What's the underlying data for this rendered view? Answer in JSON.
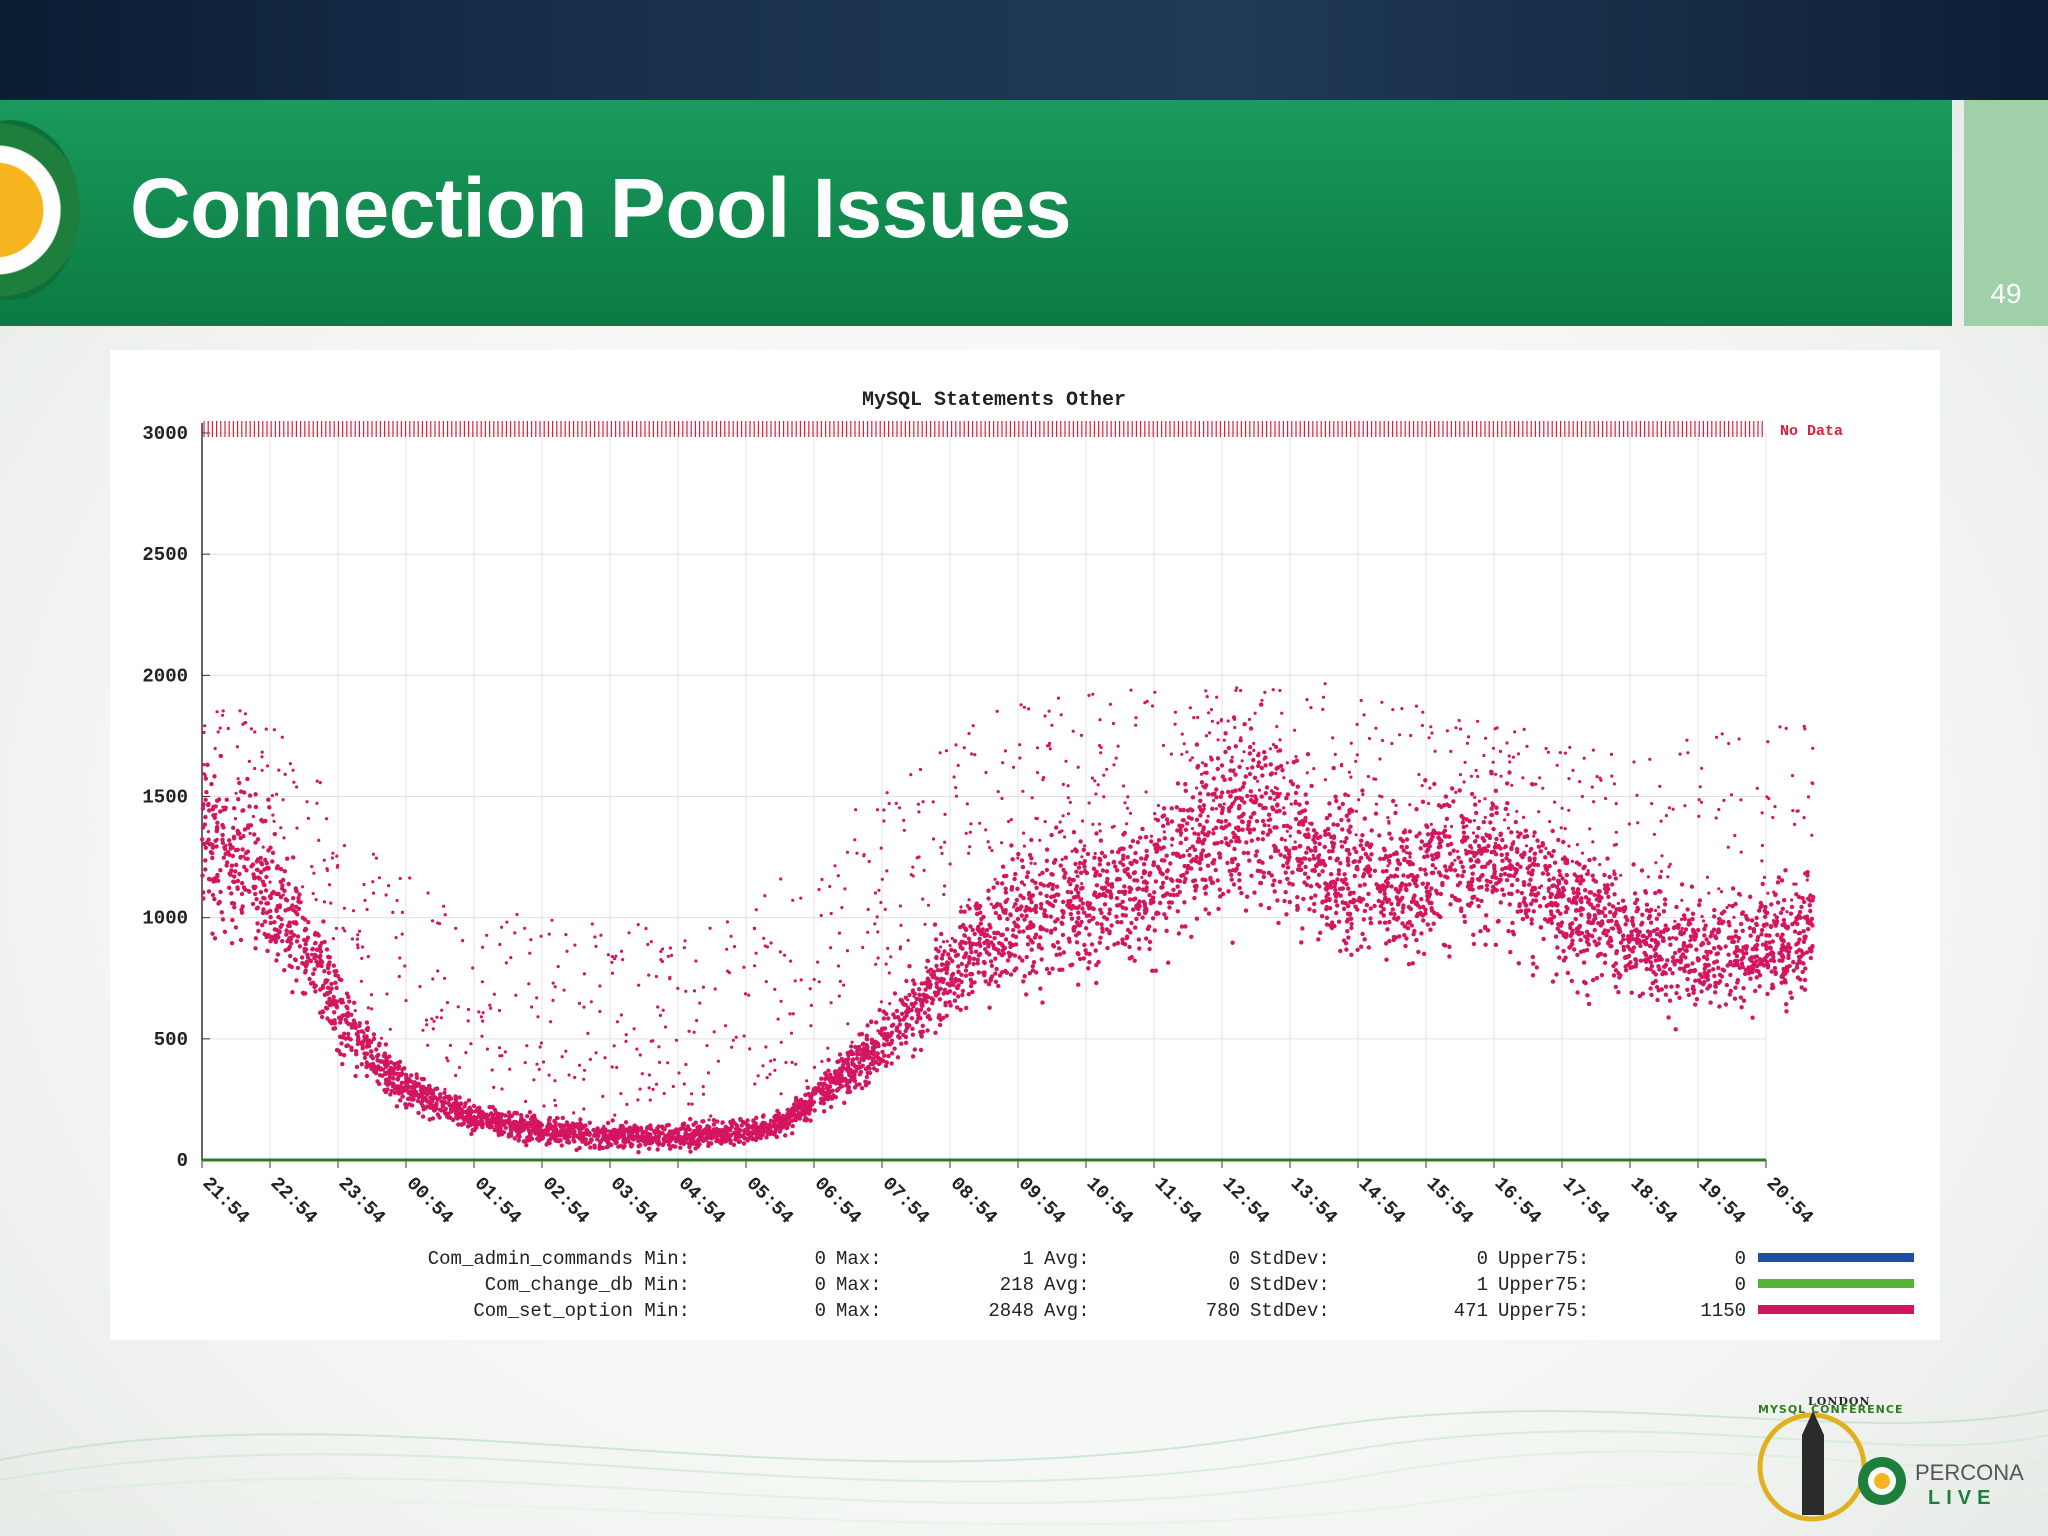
{
  "slide": {
    "title": "Connection Pool Issues",
    "page_number": "49",
    "footer_logo": {
      "conference_text": "MYSQL CONFERENCE",
      "city_text": "LONDON",
      "brand_line1": "PERCONA",
      "brand_line2": "LIVE"
    }
  },
  "colors": {
    "title_green": "#0f8449",
    "series_admin": "#1f4fa3",
    "series_change_db": "#55b33a",
    "series_set_option": "#d4155f",
    "no_data": "#e0203a",
    "axis_green": "#2e7d1c"
  },
  "chart_data": {
    "type": "scatter",
    "title": "MySQL Statements Other",
    "ylim": [
      0,
      3000
    ],
    "yticks": [
      "0",
      "500",
      "1000",
      "1500",
      "2000",
      "2500",
      "3000"
    ],
    "xticks": [
      "21:54",
      "22:54",
      "23:54",
      "00:54",
      "01:54",
      "02:54",
      "03:54",
      "04:54",
      "05:54",
      "06:54",
      "07:54",
      "08:54",
      "09:54",
      "10:54",
      "11:54",
      "12:54",
      "13:54",
      "14:54",
      "15:54",
      "16:54",
      "17:54",
      "18:54",
      "19:54",
      "20:54"
    ],
    "no_data_label": "No Data",
    "grid": true,
    "series": [
      {
        "name": "Com_set_option",
        "color_key": "series_set_option",
        "trend_hours": [
          0,
          0.5,
          1,
          1.5,
          2,
          2.5,
          3,
          4,
          5,
          6,
          7,
          8,
          8.5,
          9,
          10,
          11,
          12,
          13,
          14,
          14.5,
          15,
          15.5,
          16,
          17,
          18,
          19,
          20,
          21,
          22,
          22.5,
          23,
          23.7
        ],
        "trend_values": [
          1280,
          1250,
          1100,
          900,
          620,
          420,
          300,
          170,
          120,
          100,
          95,
          110,
          150,
          250,
          480,
          780,
          1000,
          1050,
          1150,
          1250,
          1380,
          1420,
          1300,
          1150,
          1150,
          1250,
          1050,
          900,
          820,
          840,
          880,
          940
        ],
        "upper_band_hours": [
          1,
          2,
          3,
          4,
          6,
          8,
          10,
          12,
          14,
          16,
          18,
          20,
          22,
          23.7
        ],
        "upper_band_values": [
          1800,
          1400,
          1100,
          950,
          900,
          950,
          1450,
          1850,
          1900,
          1950,
          1800,
          1700,
          1650,
          1800
        ]
      },
      {
        "name": "Com_change_db",
        "color_key": "series_change_db",
        "trend_values_constant": 0
      },
      {
        "name": "Com_admin_commands",
        "color_key": "series_admin",
        "trend_values_constant": 0
      }
    ],
    "legend": [
      {
        "name": "Com_admin_commands",
        "min": "0",
        "max": "1",
        "avg": "0",
        "stddev": "0",
        "upper75": "0",
        "color_key": "series_admin"
      },
      {
        "name": "Com_change_db",
        "min": "0",
        "max": "218",
        "avg": "0",
        "stddev": "1",
        "upper75": "0",
        "color_key": "series_change_db"
      },
      {
        "name": "Com_set_option",
        "min": "0",
        "max": "2848",
        "avg": "780",
        "stddev": "471",
        "upper75": "1150",
        "color_key": "series_set_option"
      }
    ],
    "legend_labels": {
      "min": "Min:",
      "max": "Max:",
      "avg": "Avg:",
      "stddev": "StdDev:",
      "upper75": "Upper75:"
    }
  }
}
